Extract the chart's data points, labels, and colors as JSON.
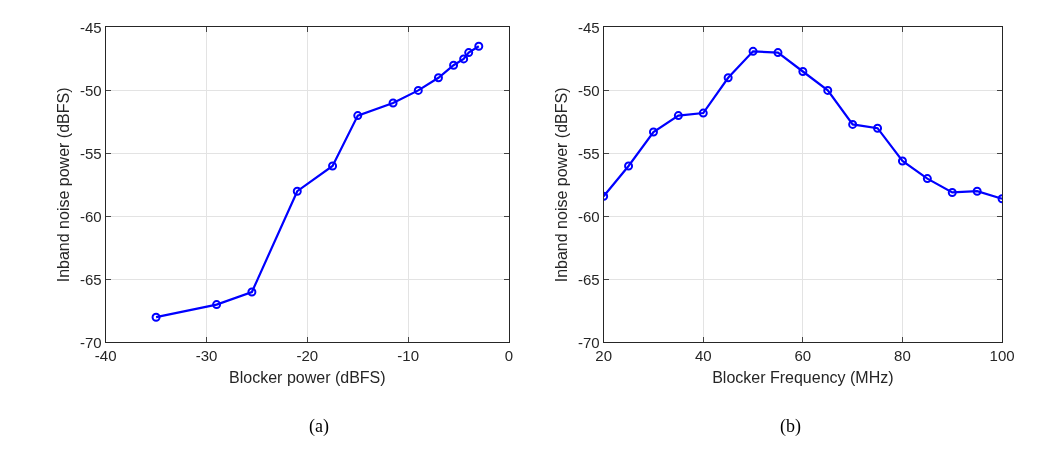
{
  "chart_data": [
    {
      "type": "line",
      "xlabel": "Blocker power (dBFS)",
      "ylabel": "Inband noise power (dBFS)",
      "annotations": [
        "(a)"
      ],
      "x": [
        -35,
        -29,
        -25.5,
        -21,
        -17.5,
        -15,
        -11.5,
        -9,
        -7,
        -5.5,
        -4.5,
        -4,
        -3
      ],
      "series": [
        {
          "color": "#0000ff",
          "values": [
            -68,
            -67,
            -66,
            -58,
            -56,
            -52,
            -51,
            -50,
            -49,
            -48,
            -47.5,
            -47,
            -46.5
          ]
        }
      ],
      "xlim": [
        -40,
        0
      ],
      "xticks": [
        -40,
        -30,
        -20,
        -10,
        0
      ],
      "ylim": [
        -70,
        -45
      ],
      "yticks": [
        -70,
        -65,
        -60,
        -55,
        -50,
        -45
      ],
      "grid": true,
      "marker": "circle",
      "line_style": "solid"
    },
    {
      "type": "line",
      "xlabel": "Blocker Frequency (MHz)",
      "ylabel": "Inband noise power (dBFS)",
      "annotations": [
        "(b)"
      ],
      "x": [
        20,
        25,
        30,
        35,
        40,
        45,
        50,
        55,
        60,
        65,
        70,
        75,
        80,
        85,
        90,
        95,
        100
      ],
      "series": [
        {
          "color": "#0000ff",
          "values": [
            -58.4,
            -56,
            -53.3,
            -52,
            -51.8,
            -49,
            -46.9,
            -47,
            -48.5,
            -50,
            -52.7,
            -53,
            -55.6,
            -57,
            -58.1,
            -58,
            -58.6
          ]
        }
      ],
      "xlim": [
        20,
        100
      ],
      "xticks": [
        20,
        40,
        60,
        80,
        100
      ],
      "ylim": [
        -70,
        -45
      ],
      "yticks": [
        -70,
        -65,
        -60,
        -55,
        -50,
        -45
      ],
      "grid": true,
      "marker": "circle",
      "line_style": "solid"
    }
  ]
}
